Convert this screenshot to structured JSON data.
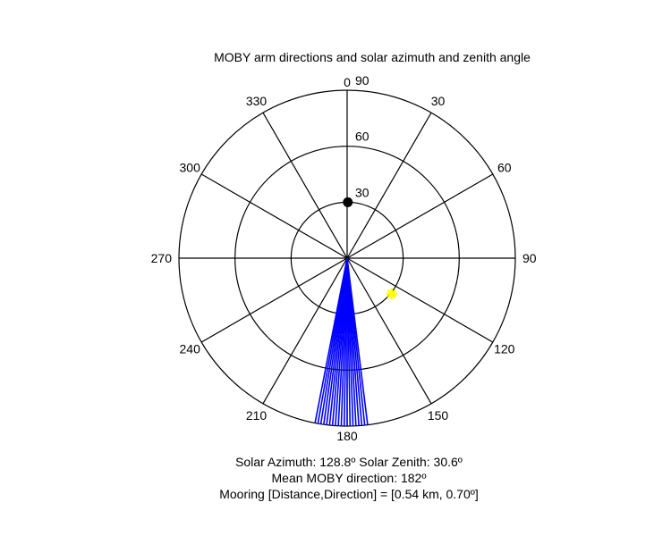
{
  "figure": {
    "title": "MOBY arm directions and solar azimuth and zenith angle",
    "caption_lines": [
      "Solar Azimuth: 128.8º   Solar Zenith: 30.6º",
      "Mean MOBY direction: 182º",
      "Mooring [Distance,Direction] = [0.54 km, 0.70º]"
    ]
  },
  "chart_data": {
    "type": "polar",
    "title": "MOBY arm directions and solar azimuth and zenith angle",
    "angle_ticks": [
      0,
      30,
      60,
      90,
      120,
      150,
      180,
      210,
      240,
      270,
      300,
      330
    ],
    "angle_convention": "compass (0 at top, clockwise)",
    "radial_ticks": [
      30,
      60,
      90
    ],
    "radial_range": [
      0,
      90
    ],
    "grid": true,
    "series": [
      {
        "marker": "line",
        "color": "#0000ff",
        "directions_deg": [
          173,
          174,
          175,
          176,
          177,
          178,
          179,
          180,
          181,
          182,
          183,
          184,
          185,
          186,
          187,
          188,
          189,
          190,
          191
        ],
        "radius": 90
      },
      {
        "marker": "star",
        "color": "#ffff00",
        "points": [
          {
            "azimuth": 128.8,
            "zenith": 30.6
          }
        ]
      },
      {
        "marker": "dot",
        "color": "#000000",
        "points": [
          {
            "azimuth": 0.7,
            "zenith": 30
          }
        ]
      }
    ]
  }
}
